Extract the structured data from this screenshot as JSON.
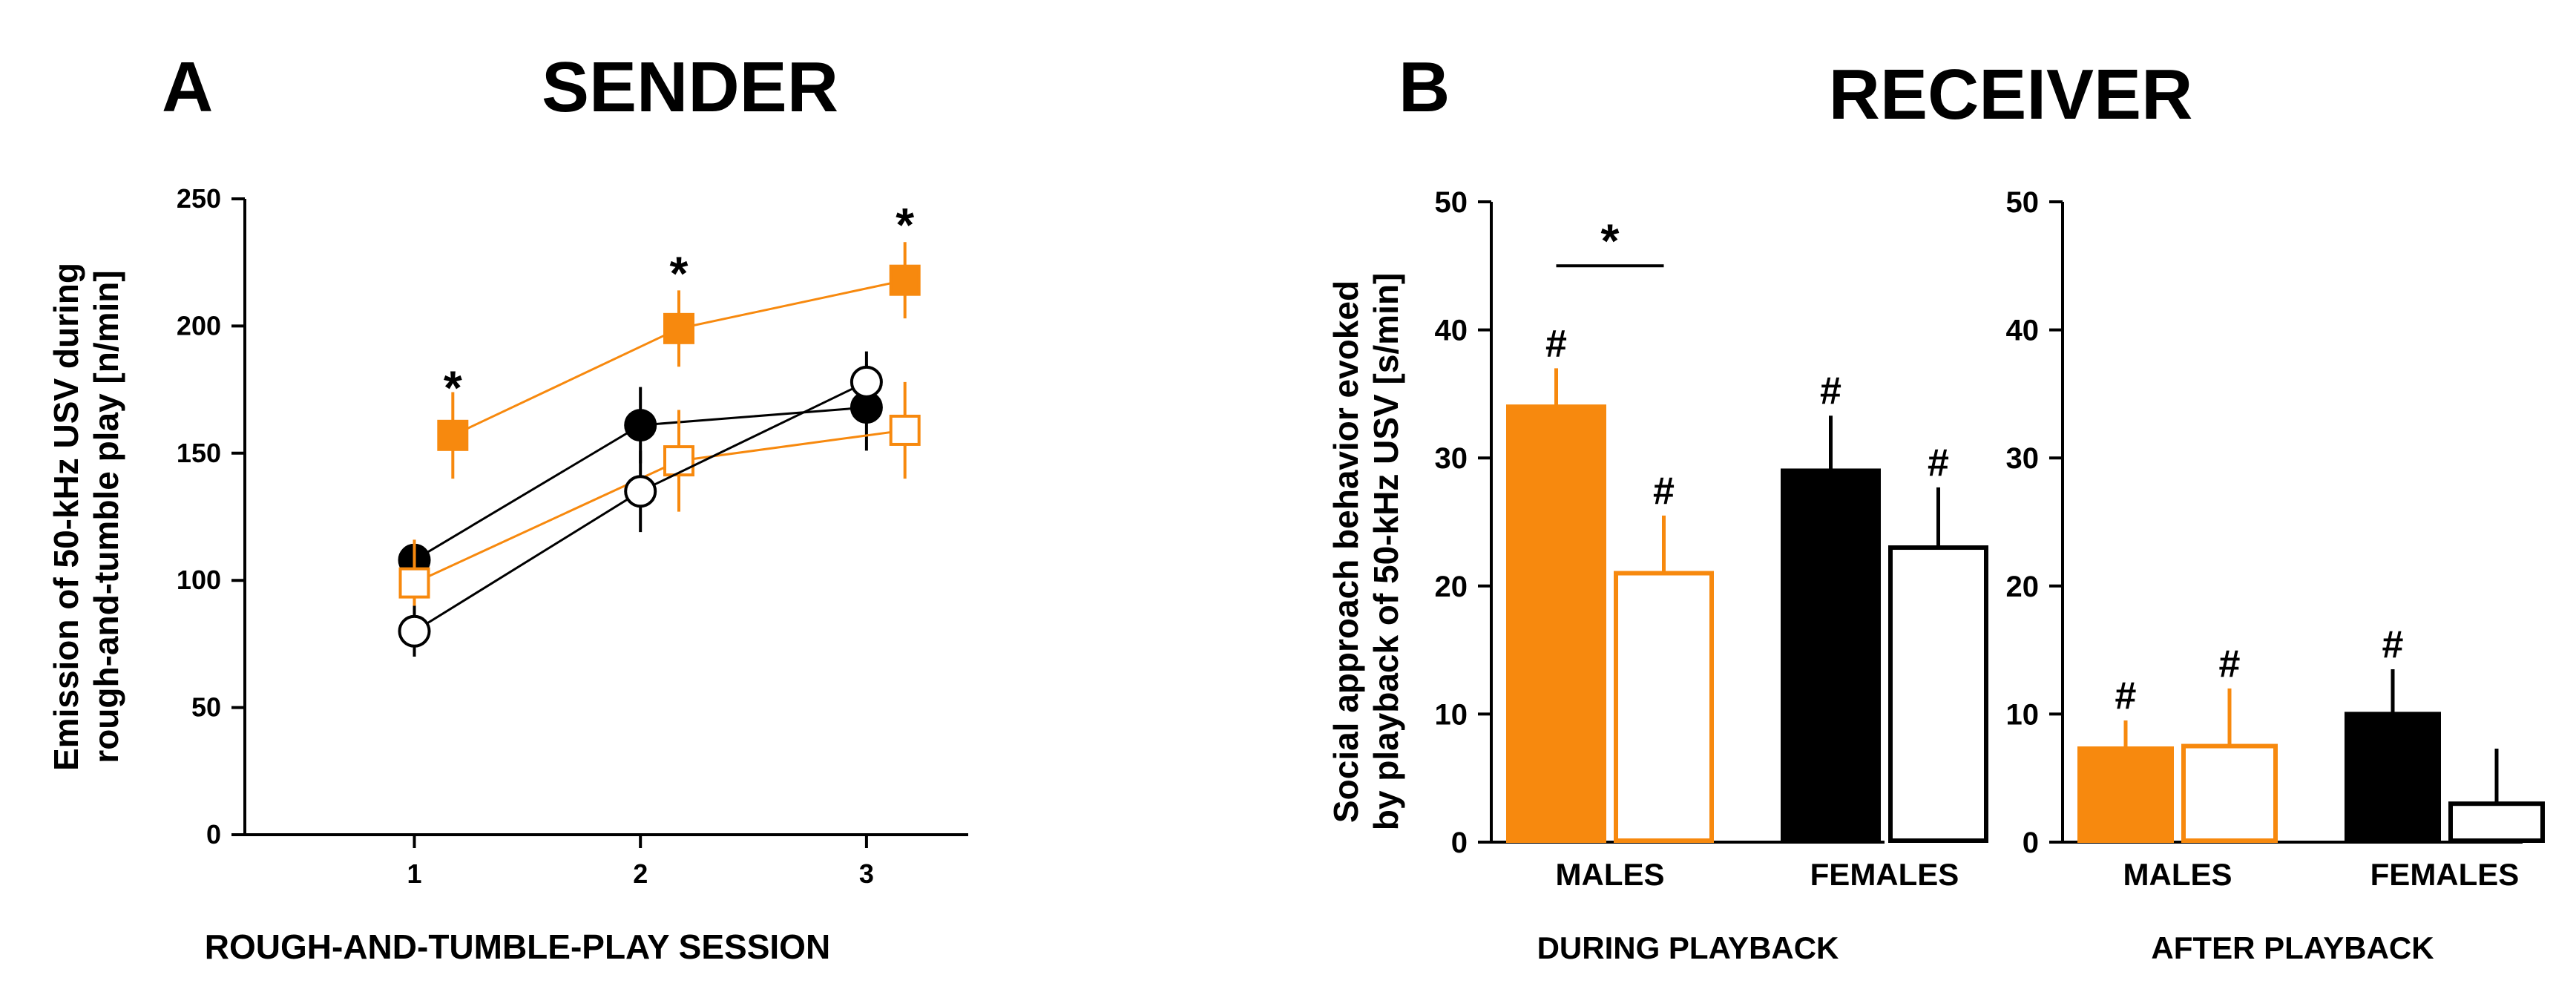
{
  "panels": [
    {
      "letter": "A",
      "title": "SENDER"
    },
    {
      "letter": "B",
      "title": "RECEIVER"
    }
  ],
  "colors": {
    "orange": "#F7890E",
    "black": "#000000",
    "white": "#ffffff",
    "axis": "#000000"
  },
  "chart_data": [
    {
      "id": "sender",
      "type": "line",
      "title": "SENDER",
      "xlabel": "ROUGH-AND-TUMBLE-PLAY SESSION",
      "ylabel": [
        "Emission of 50-kHz USV during",
        "rough-and-tumble play [n/min]"
      ],
      "xlim": [
        0.25,
        3.45
      ],
      "ylim": [
        0,
        250
      ],
      "xticks": [
        1,
        2,
        3
      ],
      "yticks": [
        0,
        50,
        100,
        150,
        200,
        250
      ],
      "series": [
        {
          "name": "males filled (orange square)",
          "color": "#F7890E",
          "marker": "square",
          "filled": true,
          "x": [
            1.17,
            2.17,
            3.17
          ],
          "values": [
            157,
            199,
            218
          ],
          "err": [
            17,
            15,
            15
          ]
        },
        {
          "name": "females filled (black circle)",
          "color": "#000000",
          "marker": "circle",
          "filled": true,
          "x": [
            1.0,
            2.0,
            3.0
          ],
          "values": [
            108,
            161,
            168
          ],
          "err": [
            0,
            15,
            17
          ]
        },
        {
          "name": "males open (orange square)",
          "color": "#F7890E",
          "marker": "square",
          "filled": false,
          "x": [
            1.0,
            2.17,
            3.17
          ],
          "values": [
            99,
            147,
            159
          ],
          "err": [
            17,
            20,
            19
          ]
        },
        {
          "name": "females open (black circle)",
          "color": "#000000",
          "marker": "circle",
          "filled": false,
          "x": [
            1.0,
            2.0,
            3.0
          ],
          "values": [
            80,
            135,
            178
          ],
          "err": [
            10,
            16,
            12
          ]
        }
      ],
      "annotations": [
        {
          "text": "*",
          "x": 1.17,
          "y": 181
        },
        {
          "text": "*",
          "x": 2.17,
          "y": 226
        },
        {
          "text": "*",
          "x": 3.17,
          "y": 245
        }
      ]
    },
    {
      "id": "during",
      "type": "bar",
      "xlabel": "DURING PLAYBACK",
      "ylabel": [
        "Social approach behavior evoked",
        "by playback of 50-kHz USV [s/min]"
      ],
      "ylim": [
        0,
        50
      ],
      "yticks": [
        0,
        10,
        20,
        30,
        40,
        50
      ],
      "groups": [
        "MALES",
        "FEMALES"
      ],
      "bars": [
        {
          "value": 34,
          "err": 3,
          "fill": "#F7890E",
          "edge": "#F7890E",
          "label": "#"
        },
        {
          "value": 21,
          "err": 4.5,
          "fill": "#ffffff",
          "edge": "#F7890E",
          "label": "#"
        },
        {
          "value": 29,
          "err": 4.3,
          "fill": "#000000",
          "edge": "#000000",
          "label": "#"
        },
        {
          "value": 23,
          "err": 4.7,
          "fill": "#ffffff",
          "edge": "#000000",
          "label": "#"
        }
      ],
      "significance": {
        "text": "*",
        "y": 45,
        "between": [
          0,
          1
        ]
      }
    },
    {
      "id": "after",
      "type": "bar",
      "xlabel": "AFTER PLAYBACK",
      "ylabel": [],
      "ylim": [
        0,
        50
      ],
      "yticks": [
        0,
        10,
        20,
        30,
        40,
        50
      ],
      "groups": [
        "MALES",
        "FEMALES"
      ],
      "bars": [
        {
          "value": 7.3,
          "err": 2.2,
          "fill": "#F7890E",
          "edge": "#F7890E",
          "label": "#"
        },
        {
          "value": 7.5,
          "err": 4.5,
          "fill": "#ffffff",
          "edge": "#F7890E",
          "label": "#"
        },
        {
          "value": 10,
          "err": 3.5,
          "fill": "#000000",
          "edge": "#000000",
          "label": "#"
        },
        {
          "value": 3,
          "err": 4.3,
          "fill": "#ffffff",
          "edge": "#000000",
          "label": ""
        }
      ]
    }
  ]
}
